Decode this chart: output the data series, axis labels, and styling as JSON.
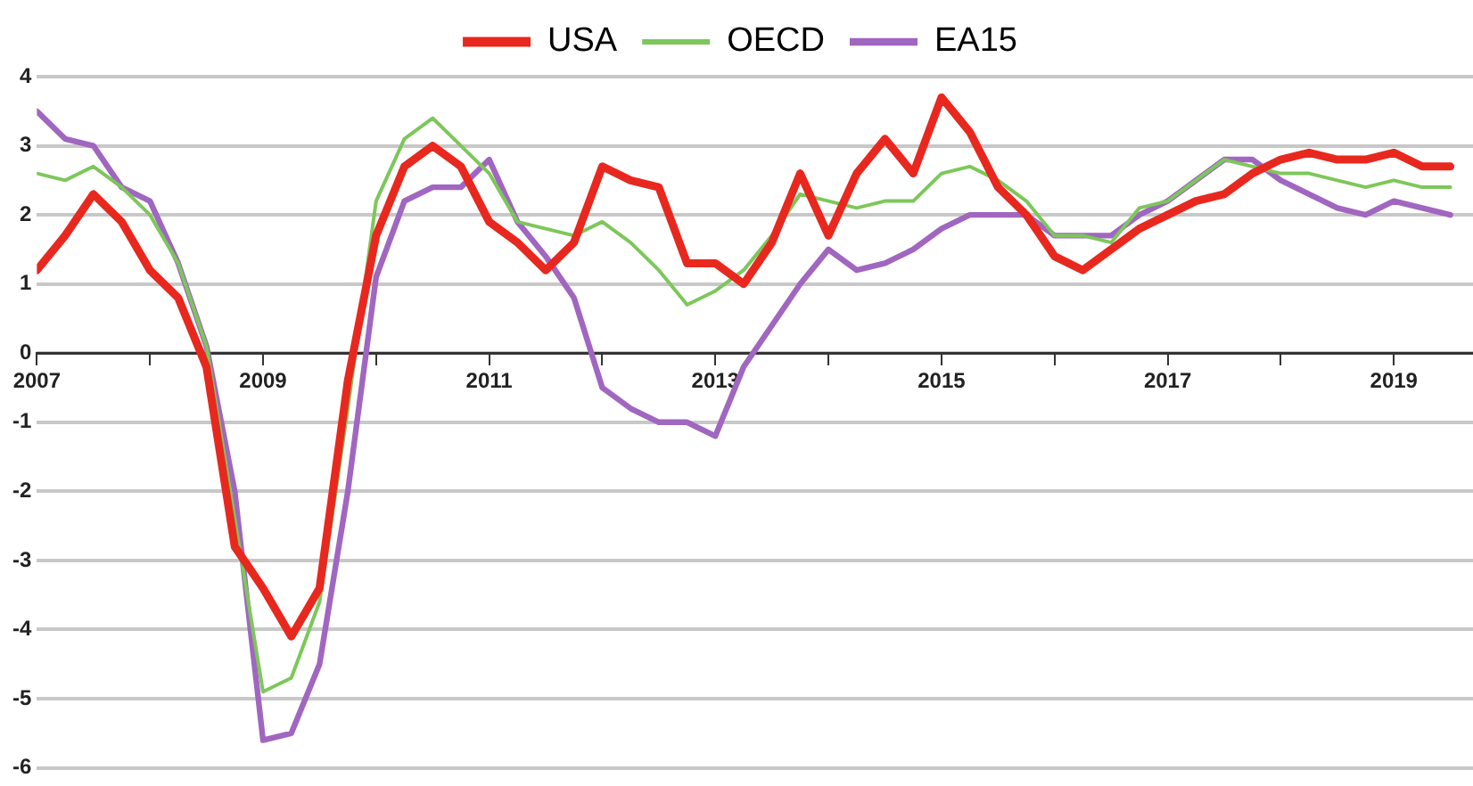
{
  "chart_data": {
    "type": "line",
    "legend": "top",
    "grid": "y",
    "marker": "none",
    "line_style": "solid",
    "x": [
      2007,
      2007.25,
      2007.5,
      2007.75,
      2008,
      2008.25,
      2008.5,
      2008.75,
      2009,
      2009.25,
      2009.5,
      2009.75,
      2010,
      2010.25,
      2010.5,
      2010.75,
      2011,
      2011.25,
      2011.5,
      2011.75,
      2012,
      2012.25,
      2012.5,
      2012.75,
      2013,
      2013.25,
      2013.5,
      2013.75,
      2014,
      2014.25,
      2014.5,
      2014.75,
      2015,
      2015.25,
      2015.5,
      2015.75,
      2016,
      2016.25,
      2016.5,
      2016.75,
      2017,
      2017.25,
      2017.5,
      2017.75,
      2018,
      2018.25,
      2018.5,
      2018.75,
      2019,
      2019.25,
      2019.5
    ],
    "xlim": [
      2007,
      2019.7
    ],
    "xticks": [
      2007,
      {
        "value": 2008,
        "label": null
      },
      2009,
      {
        "value": 2010,
        "label": null
      },
      2011,
      {
        "value": 2012,
        "label": null
      },
      2013,
      {
        "value": 2014,
        "label": null
      },
      2015,
      {
        "value": 2016,
        "label": null
      },
      2017,
      {
        "value": 2018,
        "label": null
      },
      2019
    ],
    "ylim": [
      -6,
      4
    ],
    "yticks": [
      -6,
      -5,
      -4,
      -3,
      -2,
      -1,
      0,
      1,
      2,
      3,
      4
    ],
    "series": [
      {
        "name": "USA",
        "color": "#e8281e",
        "values": [
          1.2,
          1.7,
          2.3,
          1.9,
          1.2,
          0.8,
          -0.2,
          -2.8,
          -3.4,
          -4.1,
          -3.4,
          -0.4,
          1.7,
          2.7,
          3.0,
          2.7,
          1.9,
          1.6,
          1.2,
          1.6,
          2.7,
          2.5,
          2.4,
          1.3,
          1.3,
          1.0,
          1.6,
          2.6,
          1.7,
          2.6,
          3.1,
          2.6,
          3.7,
          3.2,
          2.4,
          2.0,
          1.4,
          1.2,
          1.5,
          1.8,
          2.0,
          2.2,
          2.3,
          2.6,
          2.8,
          2.9,
          2.8,
          2.8,
          2.9,
          2.7,
          2.7
        ]
      },
      {
        "name": "OECD",
        "color": "#7dc75a",
        "values": [
          2.6,
          2.5,
          2.7,
          2.4,
          2.0,
          1.3,
          0.1,
          -2.4,
          -4.9,
          -4.7,
          -3.6,
          -0.8,
          2.2,
          3.1,
          3.4,
          3.0,
          2.6,
          1.9,
          1.8,
          1.7,
          1.9,
          1.6,
          1.2,
          0.7,
          0.9,
          1.2,
          1.7,
          2.3,
          2.2,
          2.1,
          2.2,
          2.2,
          2.6,
          2.7,
          2.5,
          2.2,
          1.7,
          1.7,
          1.6,
          2.1,
          2.2,
          2.5,
          2.8,
          2.7,
          2.6,
          2.6,
          2.5,
          2.4,
          2.5,
          2.4,
          2.4
        ]
      },
      {
        "name": "EA15",
        "color": "#a066c0",
        "values": [
          3.5,
          3.1,
          3.0,
          2.4,
          2.2,
          1.3,
          0.1,
          -2.0,
          -5.6,
          -5.5,
          -4.5,
          -2.0,
          1.1,
          2.2,
          2.4,
          2.4,
          2.8,
          1.9,
          1.4,
          0.8,
          -0.5,
          -0.8,
          -1.0,
          -1.0,
          -1.2,
          -0.2,
          0.4,
          1.0,
          1.5,
          1.2,
          1.3,
          1.5,
          1.8,
          2.0,
          2.0,
          2.0,
          1.7,
          1.7,
          1.7,
          2.0,
          2.2,
          2.5,
          2.8,
          2.8,
          2.5,
          2.3,
          2.1,
          2.0,
          2.2,
          2.1,
          2.0
        ]
      }
    ]
  }
}
